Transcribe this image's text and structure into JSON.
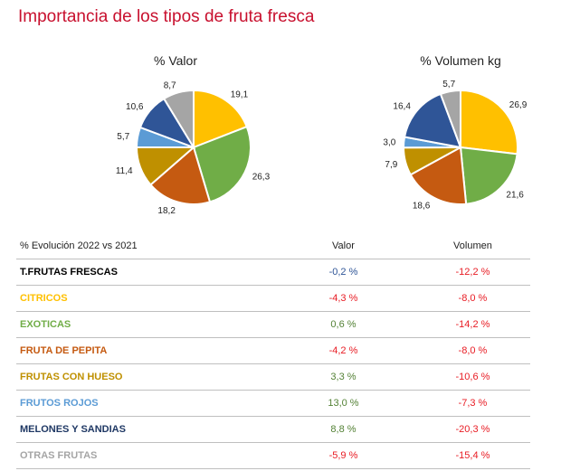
{
  "page": {
    "title": "Importancia de los tipos de fruta fresca"
  },
  "chart_data": [
    {
      "type": "pie",
      "title": "% Valor",
      "slices": [
        {
          "label": "CITRICOS",
          "value": 19.1,
          "display": "19,1",
          "color": "#ffc000"
        },
        {
          "label": "EXOTICAS",
          "value": 26.3,
          "display": "26,3",
          "color": "#70ad47"
        },
        {
          "label": "FRUTA DE PEPITA",
          "value": 18.2,
          "display": "18,2",
          "color": "#c55a11"
        },
        {
          "label": "FRUTAS CON HUESO",
          "value": 11.4,
          "display": "11,4",
          "color": "#bf9000"
        },
        {
          "label": "FRUTOS ROJOS",
          "value": 5.7,
          "display": "5,7",
          "color": "#5b9bd5"
        },
        {
          "label": "MELONES Y SANDIAS",
          "value": 10.6,
          "display": "10,6",
          "color": "#2f5597"
        },
        {
          "label": "OTRAS FRUTAS",
          "value": 8.7,
          "display": "8,7",
          "color": "#a5a5a5"
        }
      ]
    },
    {
      "type": "pie",
      "title": "% Volumen kg",
      "slices": [
        {
          "label": "CITRICOS",
          "value": 26.9,
          "display": "26,9",
          "color": "#ffc000"
        },
        {
          "label": "EXOTICAS",
          "value": 21.6,
          "display": "21,6",
          "color": "#70ad47"
        },
        {
          "label": "FRUTA DE PEPITA",
          "value": 18.6,
          "display": "18,6",
          "color": "#c55a11"
        },
        {
          "label": "FRUTAS CON HUESO",
          "value": 7.9,
          "display": "7,9",
          "color": "#bf9000"
        },
        {
          "label": "FRUTOS ROJOS",
          "value": 3.0,
          "display": "3,0",
          "color": "#5b9bd5"
        },
        {
          "label": "MELONES Y SANDIAS",
          "value": 16.4,
          "display": "16,4",
          "color": "#2f5597"
        },
        {
          "label": "OTRAS FRUTAS",
          "value": 5.7,
          "display": "5,7",
          "color": "#a5a5a5"
        }
      ]
    },
    {
      "type": "table",
      "title": "% Evolución 2022 vs 2021",
      "columns": [
        "Valor",
        "Volumen"
      ],
      "rows": [
        {
          "name": "T.FRUTAS FRESCAS",
          "name_color": "#000000",
          "valor": "-0,2 %",
          "valor_color": "#2f5597",
          "volumen": "-12,2 %",
          "volumen_color": "#e81c24"
        },
        {
          "name": "CITRICOS",
          "name_color": "#ffc000",
          "valor": "-4,3 %",
          "valor_color": "#e81c24",
          "volumen": "-8,0 %",
          "volumen_color": "#e81c24"
        },
        {
          "name": "EXOTICAS",
          "name_color": "#70ad47",
          "valor": "0,6 %",
          "valor_color": "#538135",
          "volumen": "-14,2 %",
          "volumen_color": "#e81c24"
        },
        {
          "name": "FRUTA DE PEPITA",
          "name_color": "#c55a11",
          "valor": "-4,2 %",
          "valor_color": "#e81c24",
          "volumen": "-8,0 %",
          "volumen_color": "#e81c24"
        },
        {
          "name": "FRUTAS CON HUESO",
          "name_color": "#bf9000",
          "valor": "3,3 %",
          "valor_color": "#538135",
          "volumen": "-10,6 %",
          "volumen_color": "#e81c24"
        },
        {
          "name": "FRUTOS ROJOS",
          "name_color": "#5b9bd5",
          "valor": "13,0 %",
          "valor_color": "#538135",
          "volumen": "-7,3 %",
          "volumen_color": "#e81c24"
        },
        {
          "name": "MELONES Y SANDIAS",
          "name_color": "#1f3864",
          "valor": "8,8 %",
          "valor_color": "#538135",
          "volumen": "-20,3 %",
          "volumen_color": "#e81c24"
        },
        {
          "name": "OTRAS FRUTAS",
          "name_color": "#a5a5a5",
          "valor": "-5,9 %",
          "valor_color": "#e81c24",
          "volumen": "-15,4 %",
          "volumen_color": "#e81c24"
        }
      ]
    }
  ]
}
